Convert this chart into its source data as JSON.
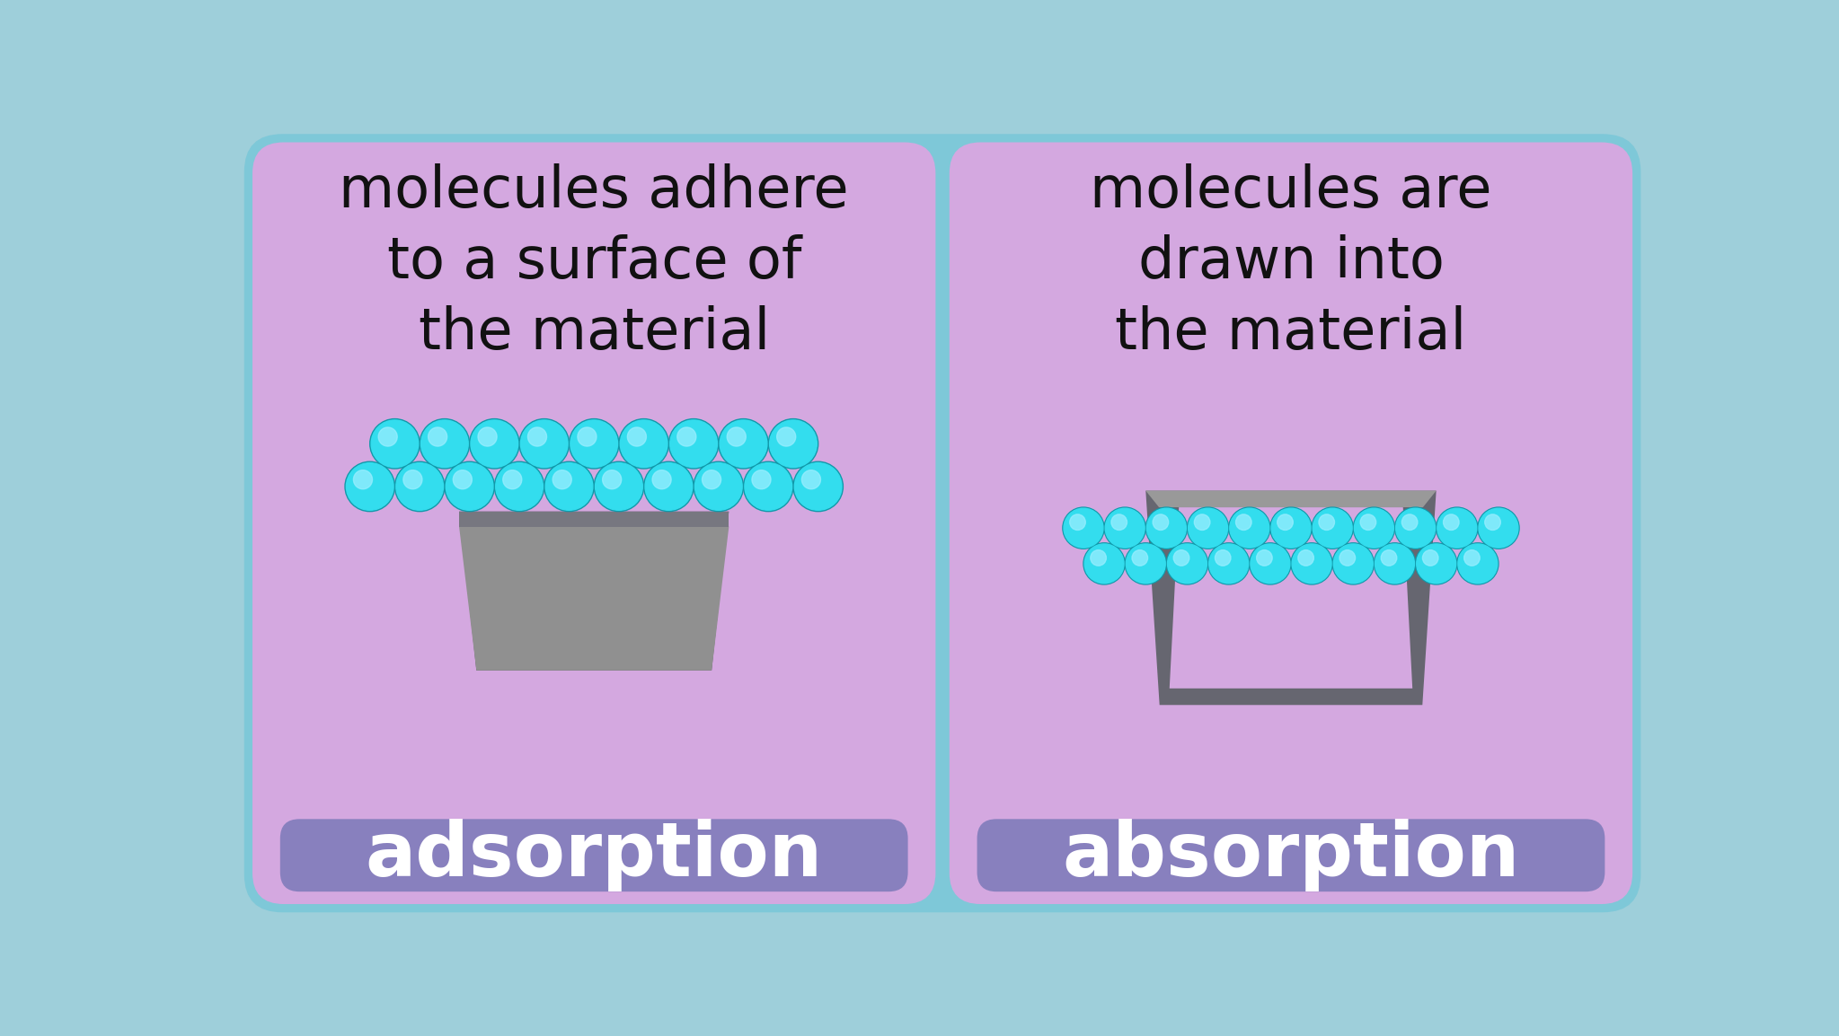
{
  "bg_color": "#9ecfda",
  "panel_bg": "#d4a8e0",
  "panel_border_color": "#7ec8d8",
  "label_box_color": "#8880be",
  "label_text_color": "#ffffff",
  "block_top_color": "#888888",
  "block_body_color": "#888888",
  "block_dark_color": "#555560",
  "ball_color": "#33ddee",
  "ball_highlight": "#aaffff",
  "text_color": "#111111",
  "adsorption_text": "molecules adhere\nto a surface of\nthe material",
  "absorption_text": "molecules are\ndrawn into\nthe material",
  "label_left": "adsorption",
  "label_right": "absorption",
  "fig_width": 20.47,
  "fig_height": 11.54
}
